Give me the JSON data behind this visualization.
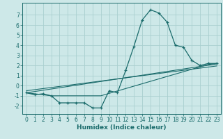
{
  "xlabel": "Humidex (Indice chaleur)",
  "ylabel": "",
  "bg_color": "#cde8e8",
  "line_color": "#1a6b6b",
  "grid_color": "#aacfcf",
  "xlim": [
    -0.5,
    23.5
  ],
  "ylim": [
    -2.8,
    8.2
  ],
  "yticks": [
    -2,
    -1,
    0,
    1,
    2,
    3,
    4,
    5,
    6,
    7
  ],
  "xticks": [
    0,
    1,
    2,
    3,
    4,
    5,
    6,
    7,
    8,
    9,
    10,
    11,
    12,
    13,
    14,
    15,
    16,
    17,
    18,
    19,
    20,
    21,
    22,
    23
  ],
  "line1_x": [
    0,
    1,
    2,
    3,
    4,
    5,
    6,
    7,
    8,
    9,
    10,
    11,
    12,
    13,
    14,
    15,
    16,
    17,
    18,
    19,
    20,
    21,
    22,
    23
  ],
  "line1_y": [
    -0.7,
    -0.9,
    -0.8,
    -1.0,
    -1.7,
    -1.7,
    -1.7,
    -1.7,
    -2.2,
    -2.2,
    -0.5,
    -0.7,
    1.5,
    3.9,
    6.5,
    7.5,
    7.2,
    6.3,
    4.0,
    3.8,
    2.5,
    2.0,
    2.2,
    2.2
  ],
  "line2_x": [
    0,
    3,
    9,
    22,
    23
  ],
  "line2_y": [
    -0.7,
    -1.0,
    -1.0,
    2.1,
    2.2
  ],
  "line3_x": [
    0,
    23
  ],
  "line3_y": [
    -0.7,
    2.15
  ],
  "line4_x": [
    0,
    23
  ],
  "line4_y": [
    -0.5,
    1.95
  ]
}
